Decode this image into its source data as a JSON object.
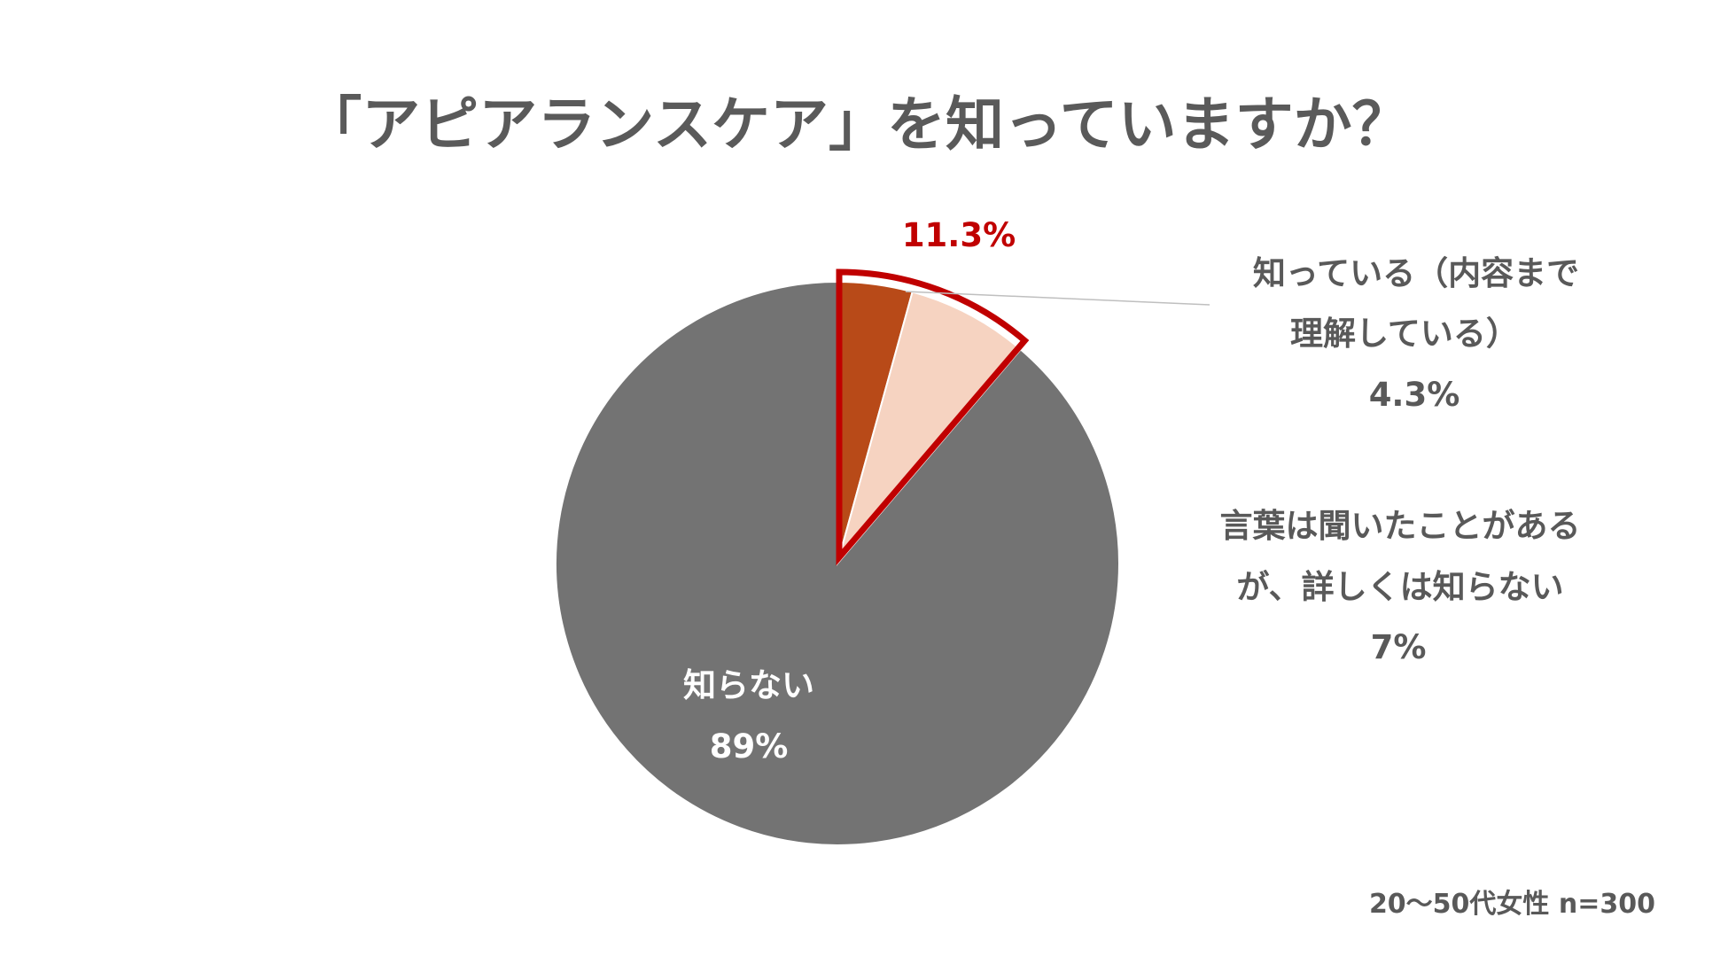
{
  "chart_data": {
    "type": "pie",
    "title": "「アピアランスケア」を知っていますか？",
    "slices": [
      {
        "label_lines": [
          "知っている（内容まで",
          "理解している）"
        ],
        "value_label": "4.3%",
        "value": 4.3,
        "color": "#b84a18"
      },
      {
        "label_lines": [
          "言葉は聞いたことがある",
          "が、詳しくは知らない"
        ],
        "value_label": "7%",
        "value": 7,
        "color": "#f6d3c1"
      },
      {
        "label_lines": [
          "知らない"
        ],
        "value_label": "89%",
        "value": 89,
        "color": "#737373"
      }
    ],
    "highlight": {
      "value_label": "11.3%",
      "value": 11.3,
      "outline_color": "#c00000"
    },
    "leader_color": "#bfbfbf",
    "footnote": "20～50代女性 n=300"
  }
}
